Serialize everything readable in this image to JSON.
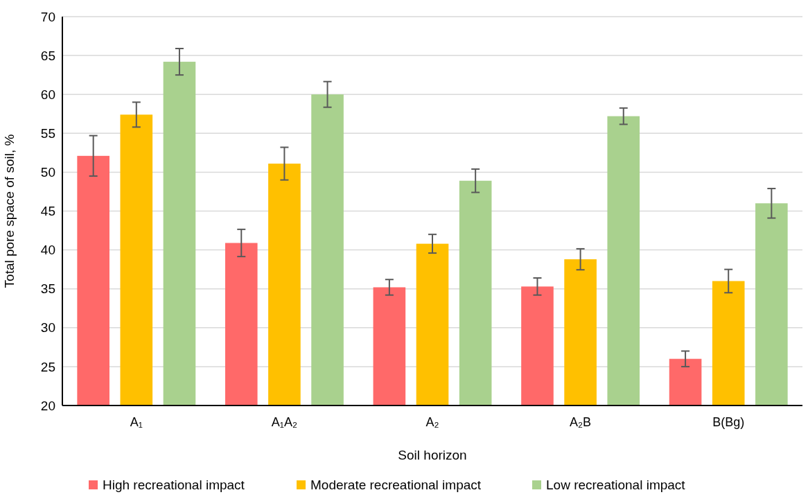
{
  "chart_data": {
    "type": "bar",
    "xlabel": "Soil horizon",
    "ylabel": "Total pore space of soil, %",
    "categories": [
      "A₁",
      "A₁A₂",
      "A₂",
      "A₂B",
      "B(Bg)"
    ],
    "series": [
      {
        "name": "High recreational impact",
        "color": "#ff6969",
        "values": [
          52.1,
          40.9,
          35.2,
          35.3,
          26.0
        ],
        "errors": [
          2.6,
          1.75,
          1.0,
          1.1,
          1.0
        ]
      },
      {
        "name": "Moderate recreational impact",
        "color": "#ffc000",
        "values": [
          57.4,
          51.1,
          40.8,
          38.8,
          36.0
        ],
        "errors": [
          1.6,
          2.1,
          1.2,
          1.35,
          1.5
        ]
      },
      {
        "name": "Low recreational impact",
        "color": "#a9d18e",
        "values": [
          64.2,
          60.0,
          48.9,
          57.2,
          46.0
        ],
        "errors": [
          1.7,
          1.65,
          1.5,
          1.05,
          1.9
        ]
      }
    ],
    "ylim": [
      20,
      70
    ],
    "yticks": [
      20,
      25,
      30,
      35,
      40,
      45,
      50,
      55,
      60,
      65,
      70
    ],
    "grid": "y",
    "legend": "bottom"
  }
}
